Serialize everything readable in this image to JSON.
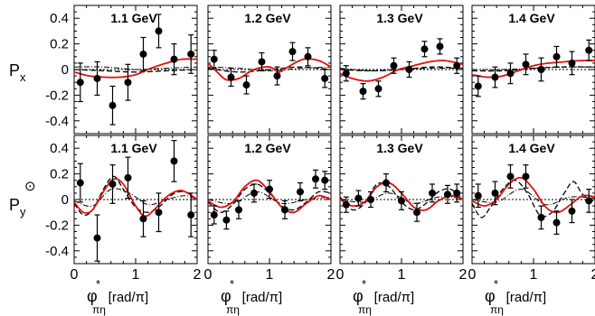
{
  "chart_data": {
    "type": "scatter",
    "description_free": true,
    "x_ticks": [
      "0",
      "1",
      "2"
    ],
    "xlim": [
      0,
      2
    ],
    "ylim": [
      -0.5,
      0.5
    ],
    "y_ticks": [
      "0.4",
      "0.2",
      "0",
      "-0.2",
      "-0.4"
    ],
    "row_labels": [
      {
        "main": "P",
        "sub": "x",
        "sup": ""
      },
      {
        "main": "P",
        "sub": "y",
        "sup": "⊙"
      }
    ],
    "x_label": {
      "phi": "φ",
      "star": "*",
      "sub": "πη",
      "unit": "[rad/π]"
    },
    "energies": [
      "1.1 GeV",
      "1.2 GeV",
      "1.3 GeV",
      "1.4 GeV"
    ],
    "panels": [
      {
        "row": 0,
        "col": 0,
        "label": "1.1 GeV",
        "x": [
          0.1,
          0.375,
          0.625,
          0.875,
          1.125,
          1.375,
          1.625,
          1.9
        ],
        "y": [
          -0.1,
          -0.07,
          -0.28,
          -0.1,
          0.12,
          0.3,
          0.08,
          0.12
        ],
        "err": [
          0.15,
          0.13,
          0.15,
          0.14,
          0.13,
          0.13,
          0.12,
          0.15
        ],
        "model_solid": [
          [
            0,
            -0.02
          ],
          [
            0.25,
            -0.05
          ],
          [
            0.5,
            -0.06
          ],
          [
            0.75,
            -0.06
          ],
          [
            1.0,
            -0.04
          ],
          [
            1.25,
            0.01
          ],
          [
            1.5,
            0.05
          ],
          [
            1.75,
            0.08
          ],
          [
            2.0,
            0.08
          ]
        ],
        "model_dash": [
          [
            0,
            0.0
          ],
          [
            0.5,
            -0.01
          ],
          [
            1.0,
            -0.02
          ],
          [
            1.5,
            -0.01
          ],
          [
            2.0,
            0.0
          ]
        ],
        "model_dashdot": [
          [
            0,
            0.02
          ],
          [
            0.5,
            0.02
          ],
          [
            1.0,
            0.0
          ],
          [
            1.5,
            0.01
          ],
          [
            2.0,
            0.02
          ]
        ]
      },
      {
        "row": 0,
        "col": 1,
        "label": "1.2 GeV",
        "x": [
          0.1,
          0.375,
          0.625,
          0.875,
          1.125,
          1.375,
          1.625,
          1.9
        ],
        "y": [
          0.08,
          -0.06,
          -0.12,
          0.06,
          -0.05,
          0.14,
          0.1,
          -0.07
        ],
        "err": [
          0.07,
          0.07,
          0.07,
          0.07,
          0.07,
          0.07,
          0.07,
          0.07
        ],
        "model_solid": [
          [
            0,
            0.05
          ],
          [
            0.15,
            -0.02
          ],
          [
            0.3,
            -0.08
          ],
          [
            0.5,
            -0.07
          ],
          [
            0.75,
            0.0
          ],
          [
            1.0,
            0.02
          ],
          [
            1.15,
            -0.02
          ],
          [
            1.3,
            0.02
          ],
          [
            1.55,
            0.08
          ],
          [
            1.8,
            0.07
          ],
          [
            2.0,
            0.02
          ]
        ],
        "model_dash": [
          [
            0,
            0.01
          ],
          [
            0.5,
            -0.02
          ],
          [
            1.0,
            0.0
          ],
          [
            1.5,
            0.02
          ],
          [
            2.0,
            0.0
          ]
        ],
        "model_dashdot": [
          [
            0,
            0.02
          ],
          [
            0.5,
            0.01
          ],
          [
            1.0,
            -0.01
          ],
          [
            1.5,
            0.01
          ],
          [
            2.0,
            0.02
          ]
        ]
      },
      {
        "row": 0,
        "col": 2,
        "label": "1.3 GeV",
        "x": [
          0.1,
          0.375,
          0.625,
          0.875,
          1.125,
          1.375,
          1.625,
          1.9
        ],
        "y": [
          -0.03,
          -0.17,
          -0.15,
          0.03,
          0.0,
          0.16,
          0.18,
          0.03
        ],
        "err": [
          0.06,
          0.06,
          0.06,
          0.06,
          0.06,
          0.06,
          0.06,
          0.06
        ],
        "model_solid": [
          [
            0,
            -0.03
          ],
          [
            0.2,
            -0.07
          ],
          [
            0.45,
            -0.09
          ],
          [
            0.7,
            -0.06
          ],
          [
            0.95,
            0.0
          ],
          [
            1.2,
            0.03
          ],
          [
            1.45,
            0.06
          ],
          [
            1.7,
            0.07
          ],
          [
            2.0,
            0.04
          ]
        ],
        "model_dash": [
          [
            0,
            0.0
          ],
          [
            0.5,
            -0.01
          ],
          [
            1.0,
            0.0
          ],
          [
            1.5,
            0.02
          ],
          [
            2.0,
            0.01
          ]
        ],
        "model_dashdot": [
          [
            0,
            0.01
          ],
          [
            0.5,
            -0.01
          ],
          [
            1.0,
            0.0
          ],
          [
            1.5,
            0.01
          ],
          [
            2.0,
            0.01
          ]
        ]
      },
      {
        "row": 0,
        "col": 3,
        "label": "1.4 GeV",
        "x": [
          0.1,
          0.375,
          0.625,
          0.875,
          1.125,
          1.375,
          1.625,
          1.9
        ],
        "y": [
          -0.13,
          -0.06,
          -0.03,
          0.04,
          0.0,
          0.1,
          0.05,
          0.15
        ],
        "err": [
          0.08,
          0.08,
          0.08,
          0.08,
          0.09,
          0.08,
          0.09,
          0.08
        ],
        "model_solid": [
          [
            0,
            -0.04
          ],
          [
            0.25,
            -0.06
          ],
          [
            0.5,
            -0.05
          ],
          [
            0.75,
            -0.01
          ],
          [
            1.0,
            0.03
          ],
          [
            1.25,
            0.05
          ],
          [
            1.5,
            0.06
          ],
          [
            1.75,
            0.07
          ],
          [
            2.0,
            0.07
          ]
        ],
        "model_dash": [
          [
            0,
            -0.01
          ],
          [
            0.5,
            -0.01
          ],
          [
            1.0,
            0.01
          ],
          [
            1.5,
            0.02
          ],
          [
            2.0,
            0.02
          ]
        ],
        "model_dashdot": [
          [
            0,
            0.0
          ],
          [
            0.5,
            0.0
          ],
          [
            1.0,
            0.01
          ],
          [
            1.5,
            0.02
          ],
          [
            2.0,
            0.02
          ]
        ]
      },
      {
        "row": 1,
        "col": 0,
        "label": "1.1 GeV",
        "x": [
          0.1,
          0.375,
          0.625,
          0.875,
          1.125,
          1.375,
          1.625,
          1.9
        ],
        "y": [
          0.13,
          -0.3,
          0.12,
          0.17,
          -0.15,
          -0.1,
          0.3,
          -0.12
        ],
        "err": [
          0.15,
          0.18,
          0.15,
          0.16,
          0.14,
          0.15,
          0.16,
          0.17
        ],
        "model_solid": [
          [
            0,
            -0.02
          ],
          [
            0.15,
            -0.1
          ],
          [
            0.3,
            -0.08
          ],
          [
            0.5,
            0.08
          ],
          [
            0.65,
            0.16
          ],
          [
            0.8,
            0.12
          ],
          [
            1.0,
            -0.05
          ],
          [
            1.15,
            -0.13
          ],
          [
            1.3,
            -0.08
          ],
          [
            1.5,
            0.02
          ],
          [
            1.7,
            0.07
          ],
          [
            1.85,
            0.05
          ],
          [
            2.0,
            0.0
          ]
        ],
        "model_dash": [
          [
            0,
            -0.03
          ],
          [
            0.15,
            -0.12
          ],
          [
            0.3,
            -0.08
          ],
          [
            0.5,
            0.1
          ],
          [
            0.65,
            0.18
          ],
          [
            0.8,
            0.08
          ],
          [
            1.0,
            -0.06
          ],
          [
            1.2,
            -0.1
          ],
          [
            1.4,
            -0.05
          ],
          [
            1.6,
            0.04
          ],
          [
            1.8,
            0.06
          ],
          [
            2.0,
            0.0
          ]
        ],
        "model_dashdot": [
          [
            0,
            -0.01
          ],
          [
            0.3,
            -0.05
          ],
          [
            0.6,
            0.08
          ],
          [
            0.9,
            0.05
          ],
          [
            1.2,
            -0.04
          ],
          [
            1.5,
            0.0
          ],
          [
            1.8,
            0.03
          ],
          [
            2.0,
            0.0
          ]
        ]
      },
      {
        "row": 1,
        "col": 1,
        "label": "1.2 GeV",
        "x": [
          0.1,
          0.3,
          0.5,
          0.75,
          1.0,
          1.25,
          1.5,
          1.75,
          1.9
        ],
        "y": [
          -0.12,
          -0.16,
          -0.08,
          0.05,
          0.08,
          -0.08,
          0.06,
          0.16,
          0.15
        ],
        "err": [
          0.07,
          0.07,
          0.07,
          0.07,
          0.07,
          0.07,
          0.07,
          0.07,
          0.07
        ],
        "model_solid": [
          [
            0,
            -0.01
          ],
          [
            0.2,
            -0.06
          ],
          [
            0.4,
            -0.02
          ],
          [
            0.6,
            0.1
          ],
          [
            0.8,
            0.15
          ],
          [
            1.0,
            0.06
          ],
          [
            1.2,
            -0.06
          ],
          [
            1.4,
            -0.1
          ],
          [
            1.6,
            -0.03
          ],
          [
            1.8,
            0.03
          ],
          [
            2.0,
            0.0
          ]
        ],
        "model_dash": [
          [
            0,
            -0.02
          ],
          [
            0.2,
            -0.1
          ],
          [
            0.4,
            -0.04
          ],
          [
            0.6,
            0.08
          ],
          [
            0.8,
            0.12
          ],
          [
            1.0,
            0.05
          ],
          [
            1.2,
            -0.05
          ],
          [
            1.4,
            -0.08
          ],
          [
            1.6,
            -0.02
          ],
          [
            1.8,
            0.06
          ],
          [
            2.0,
            0.05
          ]
        ],
        "model_dashdot": [
          [
            0,
            0.0
          ],
          [
            0.4,
            -0.03
          ],
          [
            0.8,
            0.06
          ],
          [
            1.2,
            -0.03
          ],
          [
            1.6,
            0.0
          ],
          [
            2.0,
            0.02
          ]
        ]
      },
      {
        "row": 1,
        "col": 2,
        "label": "1.3 GeV",
        "x": [
          0.1,
          0.3,
          0.5,
          0.75,
          1.0,
          1.25,
          1.5,
          1.75,
          1.9
        ],
        "y": [
          -0.04,
          0.01,
          0.0,
          0.13,
          -0.01,
          -0.1,
          0.05,
          0.04,
          0.05
        ],
        "err": [
          0.06,
          0.06,
          0.06,
          0.07,
          0.07,
          0.07,
          0.07,
          0.07,
          0.07
        ],
        "model_solid": [
          [
            0,
            0.0
          ],
          [
            0.2,
            -0.05
          ],
          [
            0.4,
            -0.02
          ],
          [
            0.6,
            0.1
          ],
          [
            0.8,
            0.13
          ],
          [
            1.0,
            0.05
          ],
          [
            1.2,
            -0.06
          ],
          [
            1.4,
            -0.08
          ],
          [
            1.6,
            -0.01
          ],
          [
            1.8,
            0.03
          ],
          [
            2.0,
            0.0
          ]
        ],
        "model_dash": [
          [
            0,
            0.02
          ],
          [
            0.2,
            -0.08
          ],
          [
            0.4,
            -0.03
          ],
          [
            0.6,
            0.12
          ],
          [
            0.8,
            0.1
          ],
          [
            1.0,
            -0.02
          ],
          [
            1.2,
            -0.08
          ],
          [
            1.4,
            -0.03
          ],
          [
            1.6,
            0.06
          ],
          [
            1.8,
            0.08
          ],
          [
            2.0,
            0.0
          ]
        ],
        "model_dashdot": [
          [
            0,
            0.0
          ],
          [
            0.4,
            -0.02
          ],
          [
            0.8,
            0.05
          ],
          [
            1.2,
            -0.03
          ],
          [
            1.6,
            0.02
          ],
          [
            2.0,
            0.01
          ]
        ]
      },
      {
        "row": 1,
        "col": 3,
        "label": "1.4 GeV",
        "x": [
          0.1,
          0.375,
          0.625,
          0.875,
          1.125,
          1.375,
          1.625,
          1.9
        ],
        "y": [
          0.03,
          0.05,
          0.18,
          0.18,
          -0.14,
          -0.18,
          -0.09,
          -0.01
        ],
        "err": [
          0.09,
          0.09,
          0.09,
          0.09,
          0.09,
          0.09,
          0.09,
          0.09
        ],
        "model_solid": [
          [
            0,
            -0.01
          ],
          [
            0.2,
            -0.05
          ],
          [
            0.4,
            0.0
          ],
          [
            0.6,
            0.12
          ],
          [
            0.8,
            0.17
          ],
          [
            1.0,
            0.08
          ],
          [
            1.2,
            -0.06
          ],
          [
            1.4,
            -0.1
          ],
          [
            1.6,
            -0.04
          ],
          [
            1.8,
            0.03
          ],
          [
            2.0,
            0.02
          ]
        ],
        "model_dash": [
          [
            0,
            -0.03
          ],
          [
            0.15,
            -0.14
          ],
          [
            0.3,
            -0.06
          ],
          [
            0.5,
            0.08
          ],
          [
            0.7,
            0.15
          ],
          [
            0.9,
            0.05
          ],
          [
            1.1,
            -0.12
          ],
          [
            1.3,
            -0.1
          ],
          [
            1.5,
            0.05
          ],
          [
            1.65,
            0.14
          ],
          [
            1.8,
            0.04
          ],
          [
            2.0,
            -0.02
          ]
        ],
        "model_dashdot": [
          [
            0,
            0.0
          ],
          [
            0.4,
            -0.02
          ],
          [
            0.8,
            0.08
          ],
          [
            1.2,
            -0.04
          ],
          [
            1.6,
            0.02
          ],
          [
            2.0,
            0.01
          ]
        ]
      }
    ],
    "colors": {
      "model_solid": "#e01010",
      "model_dash": "#000000",
      "model_dashdot": "#000000",
      "points": "#000000",
      "axes": "#000000"
    },
    "grid": false,
    "legend": "none"
  }
}
